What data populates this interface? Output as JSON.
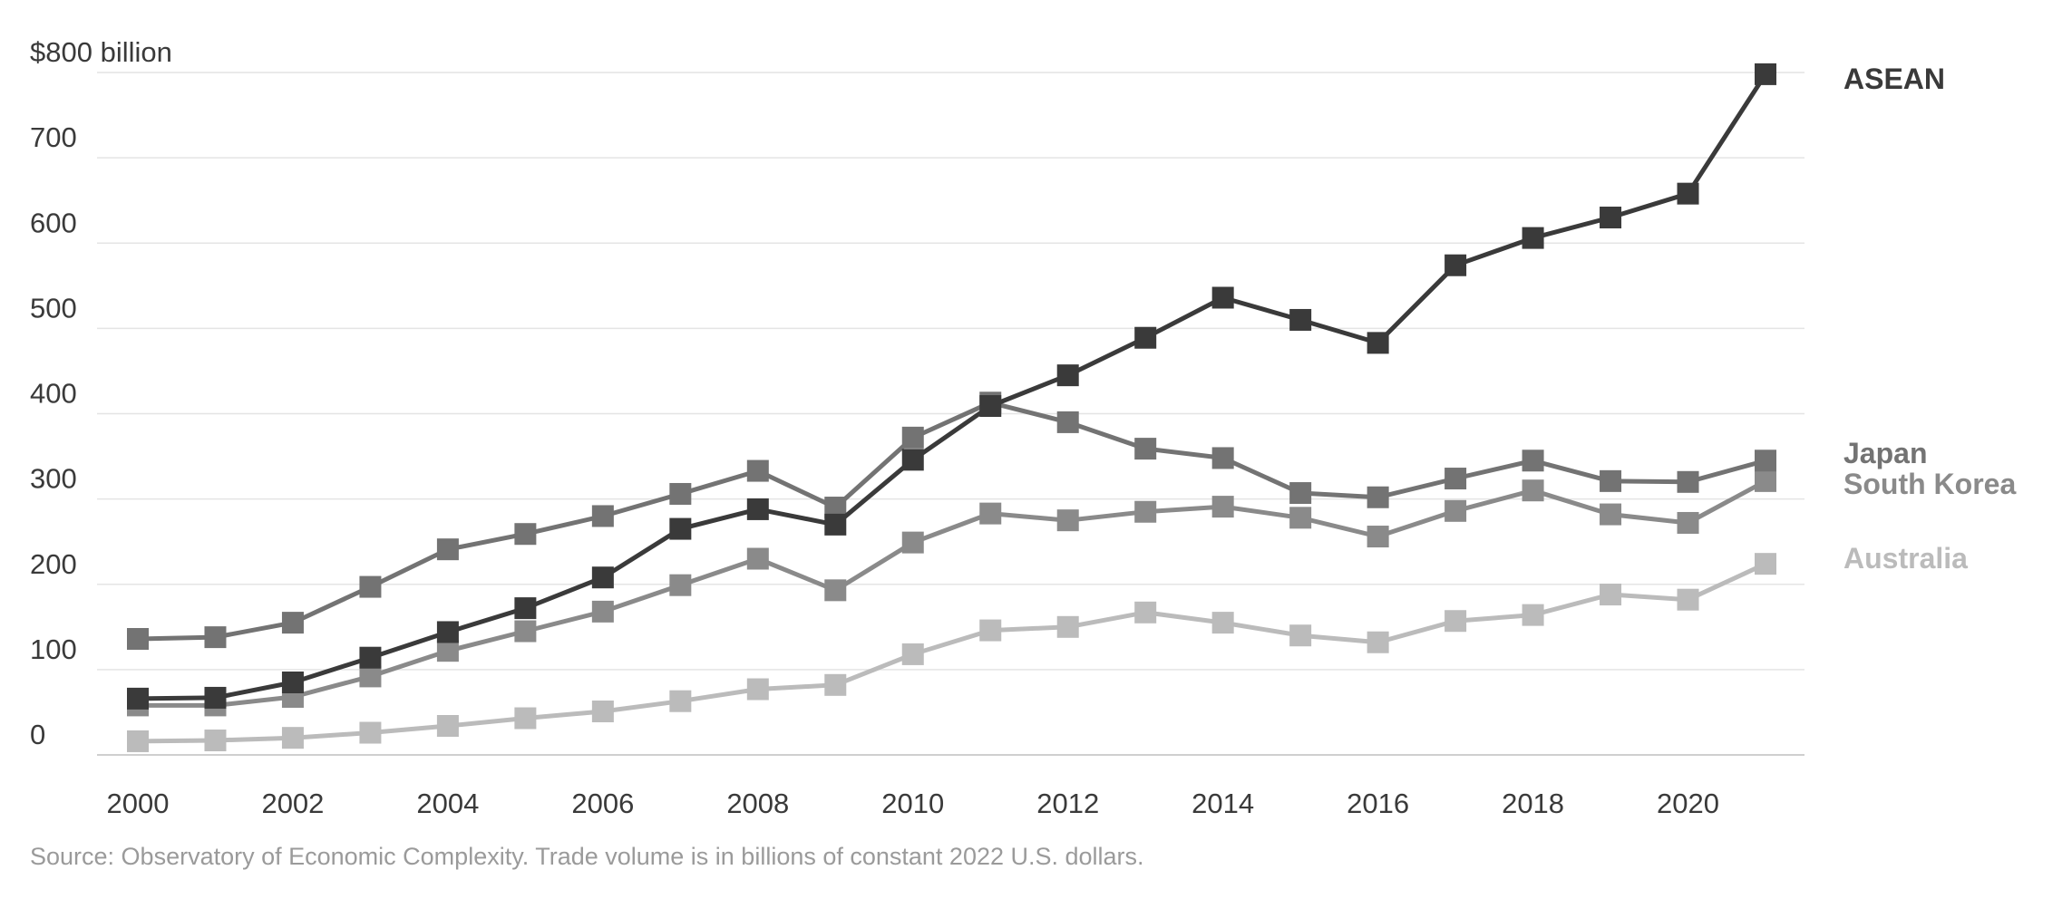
{
  "chart_data": {
    "type": "line",
    "title": "",
    "xlabel": "",
    "ylabel": "",
    "ylim": [
      0,
      800
    ],
    "yticks": [
      0,
      100,
      200,
      300,
      400,
      500,
      600,
      700,
      800
    ],
    "ytick_labels": [
      "0",
      "100",
      "200",
      "300",
      "400",
      "500",
      "600",
      "700",
      "$800 billion"
    ],
    "x": [
      2000,
      2001,
      2002,
      2003,
      2004,
      2005,
      2006,
      2007,
      2008,
      2009,
      2010,
      2011,
      2012,
      2013,
      2014,
      2015,
      2016,
      2017,
      2018,
      2019,
      2020,
      2021
    ],
    "xticks": [
      2000,
      2002,
      2004,
      2006,
      2008,
      2010,
      2012,
      2014,
      2016,
      2018,
      2020
    ],
    "xtick_labels": [
      "2000",
      "2002",
      "2004",
      "2006",
      "2008",
      "2010",
      "2012",
      "2014",
      "2016",
      "2018",
      "2020"
    ],
    "grid": true,
    "legend_placement": "right, inline labels at line ends",
    "series": [
      {
        "name": "Australia",
        "color": "#bbbbbb",
        "values": [
          16,
          17,
          20,
          26,
          34,
          43,
          51,
          63,
          77,
          82,
          118,
          146,
          150,
          167,
          155,
          140,
          132,
          157,
          164,
          188,
          182,
          224
        ]
      },
      {
        "name": "South Korea",
        "color": "#8a8a8a",
        "values": [
          58,
          58,
          68,
          92,
          122,
          145,
          168,
          199,
          230,
          193,
          249,
          283,
          275,
          285,
          291,
          278,
          256,
          286,
          310,
          282,
          272,
          321
        ]
      },
      {
        "name": "Japan",
        "color": "#737373",
        "values": [
          136,
          138,
          155,
          197,
          241,
          259,
          280,
          306,
          333,
          290,
          372,
          413,
          390,
          359,
          348,
          307,
          302,
          324,
          345,
          321,
          320,
          345
        ]
      },
      {
        "name": "ASEAN",
        "color": "#3a3a3a",
        "values": [
          66,
          67,
          85,
          114,
          144,
          172,
          208,
          265,
          288,
          270,
          346,
          409,
          445,
          489,
          536,
          510,
          483,
          574,
          606,
          630,
          658,
          798
        ]
      }
    ],
    "source": "Source: Observatory of Economic Complexity. Trade volume is in billions of constant 2022 U.S. dollars."
  }
}
